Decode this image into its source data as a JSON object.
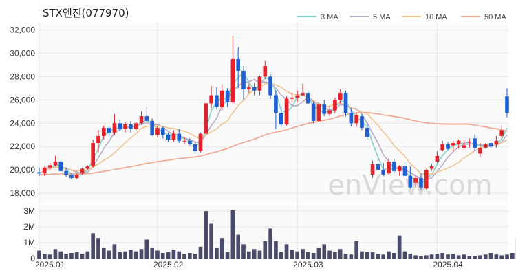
{
  "chart_data": {
    "type": "candlestick",
    "title": "STX엔진(077970)",
    "watermark": "enView.com",
    "price_axis": {
      "ticks": [
        18000,
        20000,
        22000,
        24000,
        26000,
        28000,
        30000,
        32000
      ],
      "tick_labels": [
        "18,000",
        "20,000",
        "22,000",
        "24,000",
        "26,000",
        "28,000",
        "30,000",
        "32,000"
      ],
      "ylim": [
        17300,
        32500
      ]
    },
    "volume_axis": {
      "ticks": [
        0,
        1000000,
        2000000,
        3000000
      ],
      "tick_labels": [
        "0",
        "1M",
        "2M",
        "3M"
      ],
      "ylim": [
        0,
        3400000
      ]
    },
    "x_ticks": [
      {
        "index": 0,
        "label": "2025.01"
      },
      {
        "index": 22,
        "label": "2025.02"
      },
      {
        "index": 48,
        "label": "2025.03"
      },
      {
        "index": 74,
        "label": "2025.04"
      }
    ],
    "legend": [
      {
        "name": "3 MA",
        "color": "#7dd3c8"
      },
      {
        "name": "5 MA",
        "color": "#b8a9c9"
      },
      {
        "name": "10 MA",
        "color": "#f3c48e"
      },
      {
        "name": "50 MA",
        "color": "#f2a58c"
      }
    ],
    "colors": {
      "up": "#e8202a",
      "down": "#1f5fd4",
      "volume": "#4a4a6a"
    },
    "candles": [
      [
        19800,
        20200,
        19500,
        19700
      ],
      [
        19700,
        20300,
        19500,
        20200
      ],
      [
        20200,
        20600,
        20000,
        20400
      ],
      [
        20400,
        21200,
        20300,
        20700
      ],
      [
        20700,
        20800,
        19900,
        19900
      ],
      [
        19900,
        20200,
        19400,
        19600
      ],
      [
        19600,
        19700,
        19200,
        19300
      ],
      [
        19300,
        19700,
        19200,
        19600
      ],
      [
        19700,
        20200,
        19600,
        20100
      ],
      [
        20100,
        20400,
        20000,
        20300
      ],
      [
        20300,
        22600,
        20200,
        22300
      ],
      [
        22300,
        23400,
        21500,
        22900
      ],
      [
        22900,
        23800,
        22600,
        23600
      ],
      [
        23600,
        23800,
        22800,
        23200
      ],
      [
        23200,
        24800,
        23000,
        24000
      ],
      [
        24000,
        24300,
        23300,
        23500
      ],
      [
        23500,
        24100,
        23200,
        23900
      ],
      [
        23900,
        24200,
        23200,
        23500
      ],
      [
        23500,
        24100,
        23300,
        24000
      ],
      [
        24000,
        25000,
        23900,
        24600
      ],
      [
        24600,
        25400,
        24100,
        24200
      ],
      [
        24200,
        24400,
        22900,
        23000
      ],
      [
        23000,
        23800,
        22800,
        23600
      ],
      [
        23600,
        23700,
        22700,
        23000
      ],
      [
        23000,
        23200,
        22400,
        22600
      ],
      [
        22600,
        23400,
        22400,
        23100
      ],
      [
        23100,
        23500,
        22300,
        22500
      ],
      [
        22500,
        22800,
        22200,
        22500
      ],
      [
        22500,
        22700,
        22100,
        22200
      ],
      [
        22200,
        22400,
        21400,
        21600
      ],
      [
        21600,
        23200,
        21500,
        23100
      ],
      [
        23100,
        25800,
        23000,
        25700
      ],
      [
        25700,
        27200,
        25300,
        26400
      ],
      [
        26400,
        27100,
        25200,
        25400
      ],
      [
        25400,
        27300,
        25100,
        26800
      ],
      [
        26800,
        27000,
        25400,
        25800
      ],
      [
        25800,
        31500,
        25600,
        29500
      ],
      [
        29500,
        30500,
        27000,
        28500
      ],
      [
        28500,
        28900,
        26000,
        26900
      ],
      [
        26900,
        27400,
        26600,
        27100
      ],
      [
        27100,
        27500,
        26400,
        26800
      ],
      [
        26800,
        28100,
        26400,
        28000
      ],
      [
        28000,
        29400,
        27800,
        28900
      ],
      [
        28000,
        28200,
        26100,
        26400
      ],
      [
        26400,
        26800,
        23500,
        24900
      ],
      [
        24900,
        25400,
        23700,
        23900
      ],
      [
        23900,
        26300,
        23800,
        26100
      ],
      [
        26100,
        26600,
        25800,
        26200
      ],
      [
        26200,
        26800,
        25800,
        26400
      ],
      [
        26400,
        27400,
        26300,
        26600
      ],
      [
        26600,
        26800,
        25600,
        25700
      ],
      [
        25700,
        25900,
        24000,
        24200
      ],
      [
        24200,
        25800,
        24100,
        25600
      ],
      [
        25600,
        26000,
        24600,
        24800
      ],
      [
        24800,
        25500,
        24600,
        25100
      ],
      [
        25100,
        26200,
        24900,
        26000
      ],
      [
        26000,
        26900,
        25700,
        26600
      ],
      [
        26600,
        26800,
        24600,
        24900
      ],
      [
        24900,
        25300,
        23700,
        24000
      ],
      [
        24000,
        24900,
        23700,
        24700
      ],
      [
        24600,
        24800,
        23400,
        23600
      ],
      [
        23600,
        24000,
        22600,
        22800
      ],
      [
        19600,
        20800,
        19300,
        20500
      ],
      [
        20500,
        20900,
        19800,
        20000
      ],
      [
        20000,
        20600,
        19500,
        19600
      ],
      [
        19700,
        21000,
        19600,
        20700
      ],
      [
        20700,
        20900,
        19700,
        19900
      ],
      [
        19900,
        20400,
        19500,
        20300
      ],
      [
        20300,
        20700,
        19400,
        19500
      ],
      [
        19500,
        20300,
        18400,
        18500
      ],
      [
        18900,
        19500,
        18500,
        19300
      ],
      [
        19300,
        19700,
        18300,
        18500
      ],
      [
        18400,
        20100,
        18300,
        20000
      ],
      [
        20100,
        20500,
        19900,
        20300
      ],
      [
        20700,
        21600,
        20600,
        21200
      ],
      [
        21700,
        22500,
        21600,
        22200
      ],
      [
        22200,
        22400,
        21700,
        21800
      ],
      [
        22100,
        22500,
        21600,
        22300
      ],
      [
        22200,
        22600,
        21800,
        22500
      ],
      [
        21900,
        22600,
        21700,
        22100
      ],
      [
        22400,
        22700,
        21900,
        22400
      ],
      [
        22700,
        23000,
        21600,
        21900
      ],
      [
        21400,
        22300,
        21100,
        21900
      ],
      [
        21900,
        22300,
        21800,
        22200
      ],
      [
        22300,
        22400,
        21900,
        22000
      ],
      [
        22200,
        22900,
        21900,
        22500
      ],
      [
        22900,
        23800,
        22700,
        23400
      ],
      [
        26300,
        27000,
        24500,
        24900
      ]
    ],
    "volume": [
      500000,
      300000,
      250000,
      600000,
      450000,
      300000,
      350000,
      400000,
      300000,
      450000,
      1600000,
      1300000,
      700000,
      500000,
      900000,
      400000,
      450000,
      550000,
      450000,
      600000,
      1200000,
      700000,
      500000,
      350000,
      400000,
      550000,
      450000,
      300000,
      350000,
      300000,
      750000,
      3000000,
      2200000,
      700000,
      1300000,
      400000,
      3050000,
      1500000,
      900000,
      450000,
      600000,
      500000,
      1100000,
      1900000,
      1100000,
      400000,
      900000,
      550000,
      450000,
      600000,
      400000,
      350000,
      700000,
      900000,
      500000,
      400000,
      600000,
      300000,
      250000,
      1100000,
      450000,
      400000,
      400000,
      300000,
      250000,
      450000,
      350000,
      1450000,
      450000,
      300000,
      200000,
      150000,
      200000,
      250000,
      300000,
      350000,
      250000,
      300000,
      200000,
      250000,
      150000,
      150000,
      200000,
      250000,
      350000,
      250000,
      200000,
      250000,
      350000,
      1300000
    ]
  }
}
